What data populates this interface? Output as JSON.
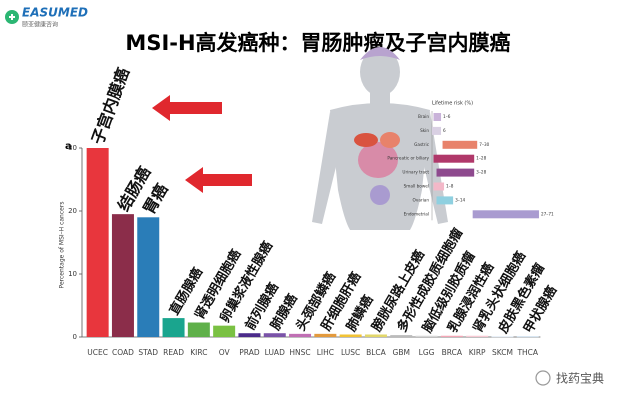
{
  "header": {
    "logo": "EASUMED",
    "logo_sub": "颐亚健康咨询",
    "title": "MSI-H高发癌种：胃肠肿瘤及子宫内膜癌",
    "watermark": "找药宝典"
  },
  "chart_data": [
    {
      "type": "bar",
      "panel": "a",
      "y_label": "Percentage of MSI–H cancers",
      "categories": [
        "UCEC",
        "COAD",
        "STAD",
        "READ",
        "KIRC",
        "OV",
        "PRAD",
        "LUAD",
        "HNSC",
        "LIHC",
        "LUSC",
        "BLCA",
        "GBM",
        "LGG",
        "BRCA",
        "KIRP",
        "SKCM",
        "THCA"
      ],
      "annotations": [
        "子宫内膜癌",
        "结肠癌",
        "胃癌",
        "直肠腺癌",
        "肾透明细胞癌",
        "卵巢浆液性腺癌",
        "前列腺癌",
        "肺腺癌",
        "头颈部鳞癌",
        "肝细胞肝癌",
        "肺鳞癌",
        "膀胱尿路上皮癌",
        "多形性成胶质细胞瘤",
        "脑低级别胶质瘤",
        "乳腺浸润性癌",
        "肾乳头状细胞癌",
        "皮肤黑色素瘤",
        "甲状腺癌"
      ],
      "values": [
        30,
        19.5,
        19,
        3,
        2.3,
        1.8,
        0.6,
        0.6,
        0.5,
        0.5,
        0.4,
        0.4,
        0.3,
        0.2,
        0.2,
        0.2,
        0.1,
        0.1
      ],
      "colors": [
        "#e8363d",
        "#8b2d4a",
        "#2a7db8",
        "#1aa58e",
        "#5fb04a",
        "#7ac143",
        "#4b2b8a",
        "#7a53a8",
        "#c06fb4",
        "#e39a3d",
        "#f2c335",
        "#e2d76a",
        "#bbbbbb",
        "#d6d6d6",
        "#f4a6b6",
        "#f7c9d3",
        "#dce7f3",
        "#c2d8ea"
      ],
      "ylim": [
        0,
        30
      ],
      "yticks": [
        0,
        10,
        20,
        30
      ]
    },
    {
      "type": "range-bar",
      "title": "Lifetime risk (%)",
      "categories": [
        "Brain",
        "Skin",
        "Gastric",
        "Pancreatic or biliary",
        "Urinary tract",
        "Small bowel",
        "Ovarian",
        "Endometrial"
      ],
      "lows": [
        1,
        0,
        7,
        1,
        3,
        1,
        3,
        27
      ],
      "highs": [
        6,
        6,
        30,
        28,
        28,
        8,
        14,
        71
      ],
      "value_labels": [
        "1–6",
        "6",
        "7–30",
        "1–28",
        "3–28",
        "1–8",
        "3–14",
        "27–71"
      ],
      "colors": [
        "#c9b3d9",
        "#d9d0e3",
        "#e8826b",
        "#b0386a",
        "#8e4a8e",
        "#f3b8c8",
        "#8fd0e0",
        "#a99bd0"
      ],
      "xlim": [
        0,
        75
      ]
    }
  ]
}
